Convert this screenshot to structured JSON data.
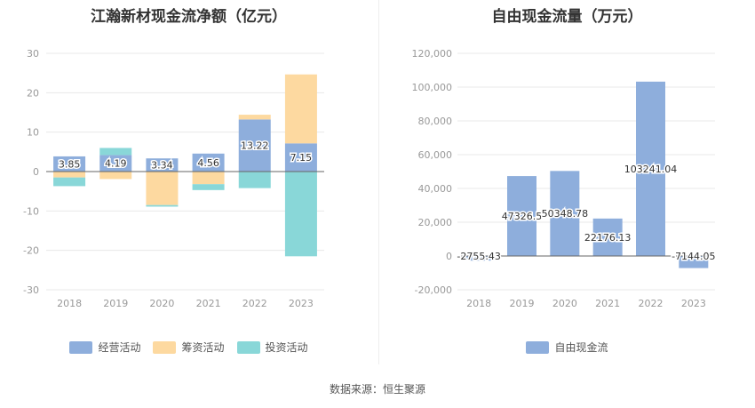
{
  "source_label": "数据来源：恒生聚源",
  "chart_data": [
    {
      "type": "bar",
      "stacked": true,
      "title": "江瀚新材现金流净额（亿元）",
      "categories": [
        "2018",
        "2019",
        "2020",
        "2021",
        "2022",
        "2023"
      ],
      "ylim": [
        -30,
        30
      ],
      "yticks": [
        -30,
        -20,
        -10,
        0,
        10,
        20,
        30
      ],
      "grid": true,
      "legend_position": "bottom",
      "series": [
        {
          "name": "经营活动",
          "color": "#8eaedc",
          "values": [
            3.85,
            4.19,
            3.34,
            4.56,
            13.22,
            7.15
          ]
        },
        {
          "name": "筹资活动",
          "color": "#fdd9a0",
          "values": [
            -1.5,
            -1.9,
            -8.5,
            -3.2,
            1.2,
            17.5
          ]
        },
        {
          "name": "投资活动",
          "color": "#89d7d8",
          "values": [
            -2.2,
            1.8,
            -0.4,
            -1.5,
            -4.2,
            -21.5
          ]
        }
      ],
      "data_labels": [
        "3.85",
        "4.19",
        "3.34",
        "4.56",
        "13.22",
        "7.15"
      ]
    },
    {
      "type": "bar",
      "title": "自由现金流量（万元）",
      "categories": [
        "2018",
        "2019",
        "2020",
        "2021",
        "2022",
        "2023"
      ],
      "ylim": [
        -20000,
        120000
      ],
      "yticks": [
        -20000,
        0,
        20000,
        40000,
        60000,
        80000,
        100000,
        120000
      ],
      "ytick_labels": [
        "-20,000",
        "0",
        "20,000",
        "40,000",
        "60,000",
        "80,000",
        "100,000",
        "120,000"
      ],
      "grid": true,
      "legend_position": "bottom",
      "series": [
        {
          "name": "自由现金流",
          "color": "#8eaedc",
          "values": [
            -2755.43,
            47326.5,
            50348.78,
            22176.13,
            103241.04,
            -7144.05
          ]
        }
      ],
      "data_labels": [
        "-2755.43",
        "47326.5",
        "50348.78",
        "22176.13",
        "103241.04",
        "-7144.05"
      ]
    }
  ]
}
